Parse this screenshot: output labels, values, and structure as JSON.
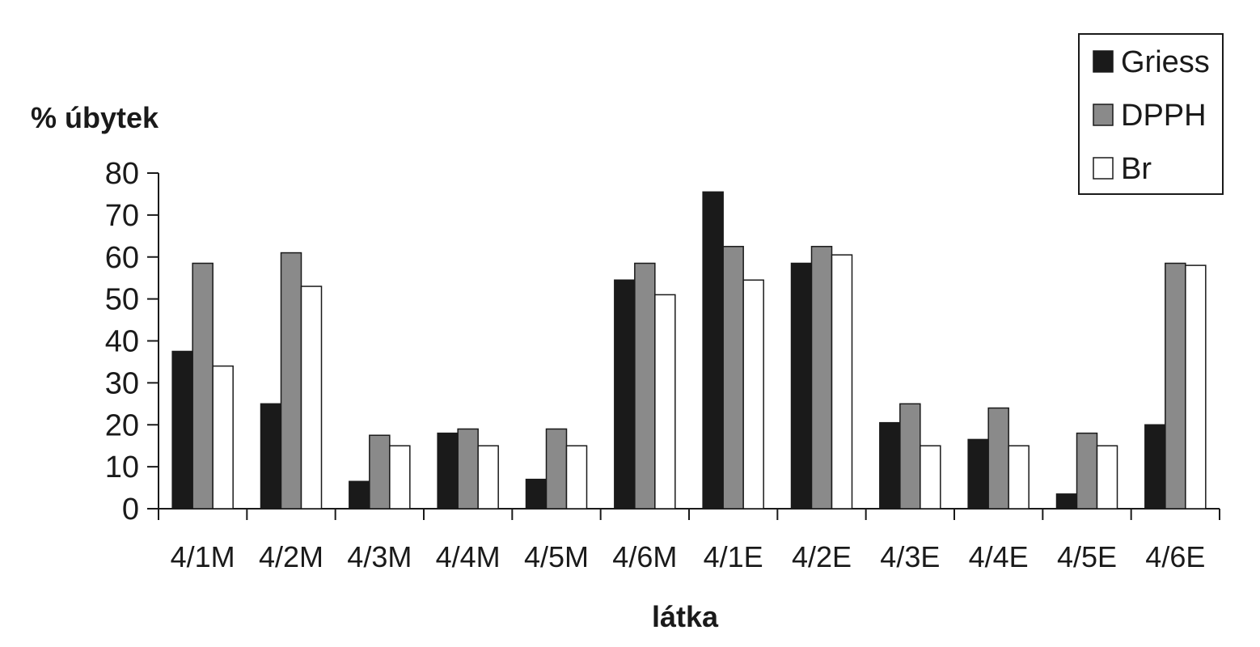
{
  "chart_data": {
    "type": "bar",
    "ylabel": "% úbytek",
    "xlabel": "látka",
    "ylim": [
      0,
      80
    ],
    "yticks": [
      0,
      10,
      20,
      30,
      40,
      50,
      60,
      70,
      80
    ],
    "categories": [
      "4/1M",
      "4/2M",
      "4/3M",
      "4/4M",
      "4/5M",
      "4/6M",
      "4/1E",
      "4/2E",
      "4/3E",
      "4/4E",
      "4/5E",
      "4/6E"
    ],
    "series": [
      {
        "name": "Griess",
        "color": "#1a1a1a",
        "values": [
          37.5,
          25,
          6.5,
          18,
          7,
          54.5,
          75.5,
          58.5,
          20.5,
          16.5,
          3.5,
          20
        ]
      },
      {
        "name": "DPPH",
        "color": "#8a8a8a",
        "values": [
          58.5,
          61,
          17.5,
          19,
          19,
          58.5,
          62.5,
          62.5,
          25,
          24,
          18,
          58.5
        ]
      },
      {
        "name": "Br",
        "color": "#ffffff",
        "values": [
          34,
          53,
          15,
          15,
          15,
          51,
          54.5,
          60.5,
          15,
          15,
          15,
          58
        ]
      }
    ],
    "grid": false,
    "legend_position": "top-right"
  }
}
